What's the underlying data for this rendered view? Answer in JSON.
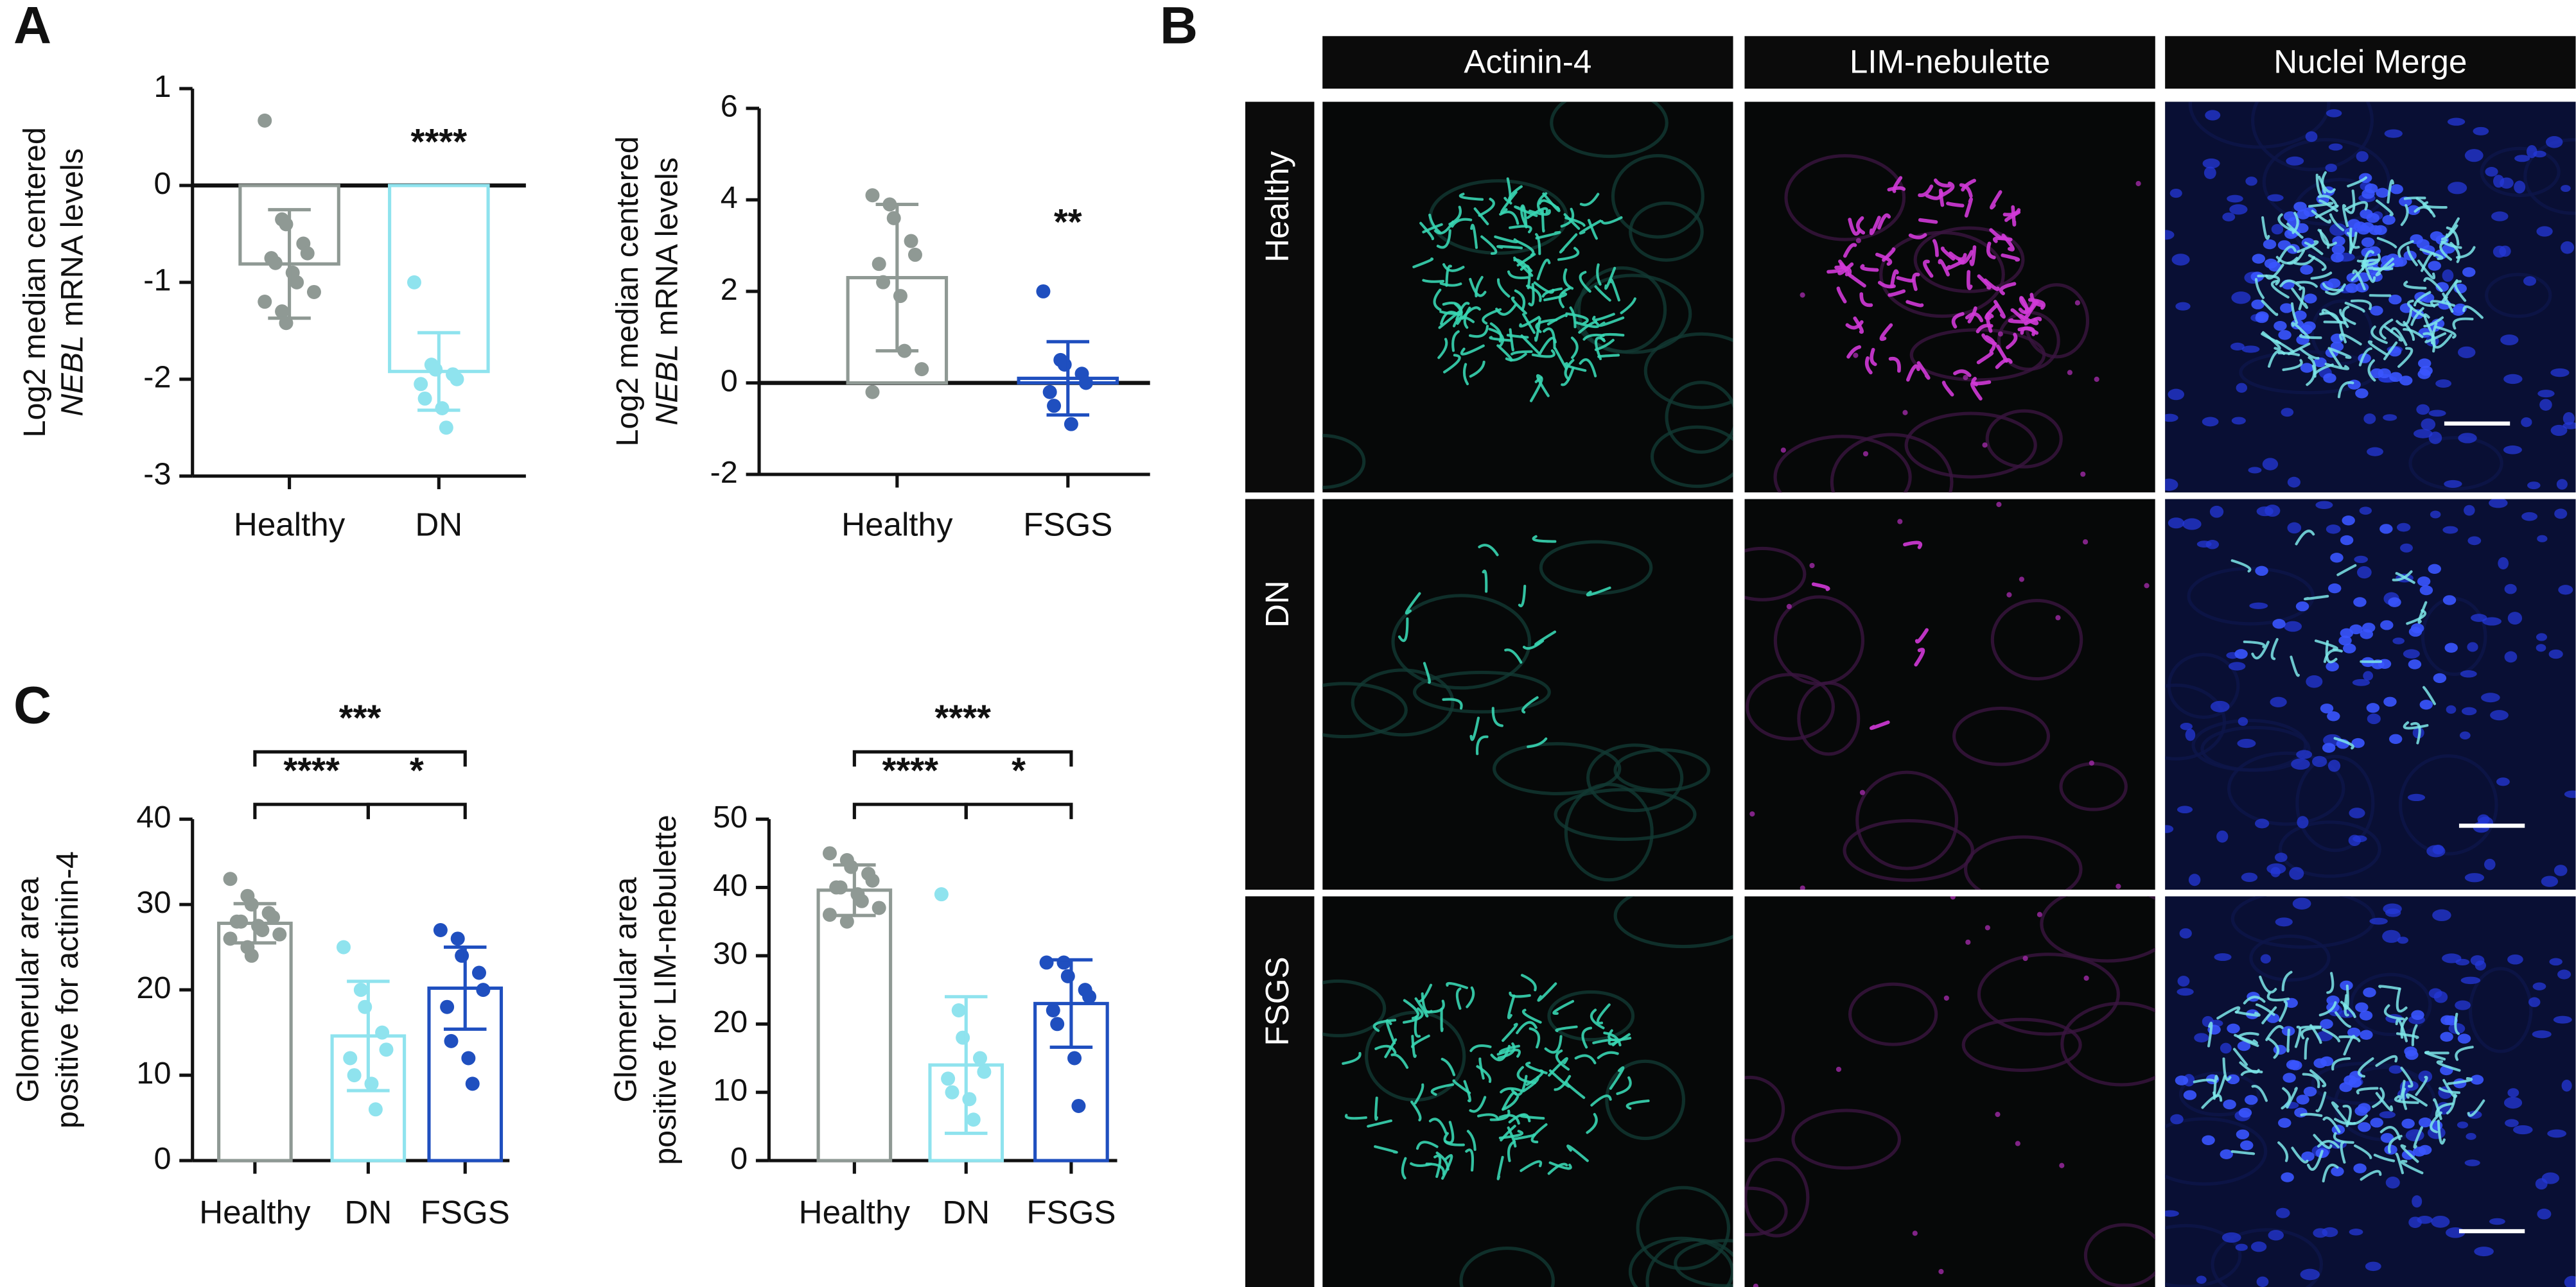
{
  "panel_labels": [
    "A",
    "B",
    "C"
  ],
  "chart_data": [
    {
      "type": "bar",
      "ylabel": [
        [
          "Log2 median centered"
        ],
        [
          {
            "text": "NEBL",
            "italic": true
          },
          "mRNA levels"
        ]
      ],
      "categories": [
        "Healthy",
        "DN"
      ],
      "colors": [
        "#8f9994",
        "#8fe3ee"
      ],
      "values": [
        -0.81,
        -1.92
      ],
      "errors": [
        0.56,
        0.4
      ],
      "points": [
        [
          0.67,
          -0.35,
          -0.4,
          -0.6,
          -0.7,
          -0.75,
          -0.8,
          -0.9,
          -1.0,
          -1.1,
          -1.2,
          -1.3,
          -1.42
        ],
        [
          -1.0,
          -1.85,
          -1.9,
          -1.95,
          -2.0,
          -2.05,
          -2.2,
          -2.3,
          -2.5
        ]
      ],
      "annotations": [
        {
          "at": 1,
          "label": "****"
        }
      ],
      "ylim": [
        -3,
        1
      ],
      "yticks": [
        -3,
        -2,
        -1,
        0,
        1
      ]
    },
    {
      "type": "bar",
      "ylabel": [
        [
          "Log2 median centered"
        ],
        [
          {
            "text": "NEBL",
            "italic": true
          },
          "mRNA levels"
        ]
      ],
      "categories": [
        "Healthy",
        "FSGS"
      ],
      "colors": [
        "#8f9994",
        "#1f4fbf"
      ],
      "values": [
        2.3,
        0.1
      ],
      "errors": [
        1.6,
        0.8
      ],
      "points": [
        [
          4.1,
          3.9,
          3.6,
          3.1,
          2.8,
          2.6,
          2.2,
          1.9,
          0.7,
          0.3,
          -0.2
        ],
        [
          2.0,
          0.5,
          0.4,
          0.2,
          0.0,
          -0.2,
          -0.5,
          -0.9
        ]
      ],
      "annotations": [
        {
          "at": 1,
          "label": "**"
        }
      ],
      "ylim": [
        -2,
        6
      ],
      "yticks": [
        -2,
        0,
        2,
        4,
        6
      ]
    },
    {
      "type": "bar",
      "ylabel": [
        [
          "Glomerular area"
        ],
        [
          "positive for actinin-4"
        ]
      ],
      "categories": [
        "Healthy",
        "DN",
        "FSGS"
      ],
      "colors": [
        "#8f9994",
        "#8fe3ee",
        "#1f4fbf"
      ],
      "values": [
        27.8,
        14.6,
        20.2
      ],
      "errors": [
        2.3,
        6.4,
        4.8
      ],
      "points": [
        [
          33,
          31,
          30,
          29,
          28.5,
          28,
          28,
          27.5,
          27,
          26.5,
          26,
          25,
          24
        ],
        [
          25,
          20,
          18,
          15,
          13,
          12,
          10,
          9,
          6
        ],
        [
          27,
          26,
          24,
          22,
          20,
          18,
          14,
          12,
          9
        ]
      ],
      "annotations": [
        {
          "pair": [
            0,
            2
          ],
          "label": "***"
        },
        {
          "pair": [
            0,
            1
          ],
          "label": "****"
        },
        {
          "pair": [
            1,
            2
          ],
          "label": "*"
        }
      ],
      "ylim": [
        0,
        40
      ],
      "yticks": [
        0,
        10,
        20,
        30,
        40
      ]
    },
    {
      "type": "bar",
      "ylabel": [
        [
          "Glomerular area"
        ],
        [
          "positive for LIM-nebulette"
        ]
      ],
      "categories": [
        "Healthy",
        "DN",
        "FSGS"
      ],
      "colors": [
        "#8f9994",
        "#8fe3ee",
        "#1f4fbf"
      ],
      "values": [
        39.6,
        14.0,
        23.0
      ],
      "errors": [
        3.7,
        10.0,
        6.4
      ],
      "points": [
        [
          45,
          44,
          43,
          42,
          41,
          40,
          40,
          39,
          38,
          37,
          36,
          35
        ],
        [
          39,
          22,
          18,
          15,
          13,
          12,
          10,
          9,
          6
        ],
        [
          29,
          29,
          27,
          25,
          24,
          22,
          20,
          15,
          8
        ]
      ],
      "annotations": [
        {
          "pair": [
            0,
            2
          ],
          "label": "****"
        },
        {
          "pair": [
            0,
            1
          ],
          "label": "****"
        },
        {
          "pair": [
            1,
            2
          ],
          "label": "*"
        }
      ],
      "ylim": [
        0,
        50
      ],
      "yticks": [
        0,
        10,
        20,
        30,
        40,
        50
      ]
    }
  ],
  "micrographs": {
    "columns": [
      "Actinin-4",
      "LIM-nebulette",
      "Nuclei Merge"
    ],
    "rows": [
      "Healthy",
      "DN",
      "FSGS"
    ]
  }
}
